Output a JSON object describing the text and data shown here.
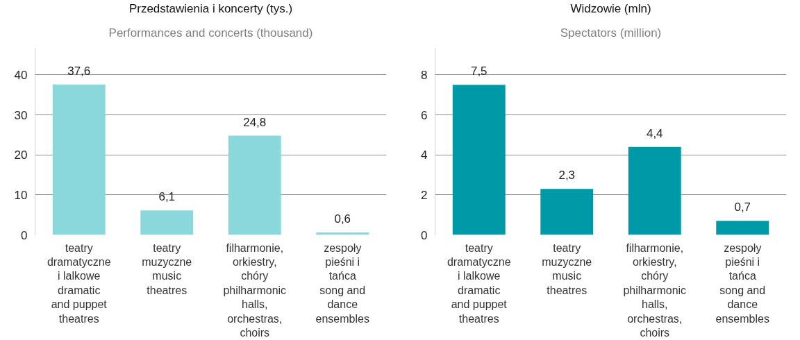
{
  "chart_data": [
    {
      "type": "bar",
      "title": "Przedstawienia i koncerty (tys.)",
      "subtitle": "Performances and concerts (thousand)",
      "categories": [
        "teatry dramatyczne i lalkowe\ndramatic and puppet theatres",
        "teatry muzyczne\nmusic theatres",
        "filharmonie, orkiestry, chóry\nphilharmonic halls, orchestras, choirs",
        "zespoły pieśni i tańca\nsong and dance ensembles"
      ],
      "values": [
        37.6,
        6.1,
        24.8,
        0.6
      ],
      "value_labels": [
        "37,6",
        "6,1",
        "24,8",
        "0,6"
      ],
      "color": "#8ad8dc",
      "ylim": [
        0,
        46.5
      ],
      "yticks": [
        0,
        10,
        20,
        30,
        40
      ],
      "grid": "y"
    },
    {
      "type": "bar",
      "title": "Widzowie (mln)",
      "subtitle": "Spectators (million)",
      "categories": [
        "teatry dramatyczne i lalkowe\ndramatic and puppet theatres",
        "teatry muzyczne\nmusic theatres",
        "filharmonie, orkiestry, chóry\nphilharmonic halls, orchestras, choirs",
        "zespoły pieśni i tańca\nsong and dance ensembles"
      ],
      "values": [
        7.5,
        2.3,
        4.4,
        0.7
      ],
      "value_labels": [
        "7,5",
        "2,3",
        "4,4",
        "0,7"
      ],
      "color": "#0099a8",
      "ylim": [
        0,
        9.3
      ],
      "yticks": [
        0,
        2,
        4,
        6,
        8
      ],
      "grid": "y"
    }
  ]
}
